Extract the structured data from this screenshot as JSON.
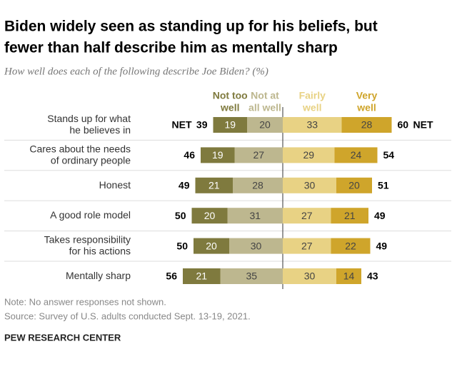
{
  "chart_data": {
    "type": "diverging_bar",
    "title": [
      "Biden widely seen as standing up for his beliefs, but",
      "fewer than half describe him as mentally sharp"
    ],
    "subtitle": "How well does each of the following describe Joe Biden? (%)",
    "categories": [
      [
        "Stands up for what",
        "he believes in"
      ],
      [
        "Cares about the needs",
        "of ordinary people"
      ],
      [
        "Honest"
      ],
      [
        "A good role model"
      ],
      [
        "Takes responsibility",
        "for his actions"
      ],
      [
        "Mentally sharp"
      ]
    ],
    "series": [
      {
        "name": [
          "Not at",
          "all well"
        ],
        "color": "#7f7a3e",
        "text_color": "#ffffff",
        "side": "left",
        "values": [
          20,
          27,
          28,
          31,
          30,
          35
        ]
      },
      {
        "name": [
          "Not too",
          "well"
        ],
        "color": "#bdb78f",
        "text_color": "#444444",
        "side": "left",
        "values": [
          19,
          19,
          21,
          20,
          20,
          21
        ]
      },
      {
        "name": [
          "Fairly",
          "well"
        ],
        "color": "#e8d284",
        "text_color": "#444444",
        "side": "right",
        "values": [
          33,
          29,
          30,
          27,
          27,
          30
        ]
      },
      {
        "name": [
          "Very",
          "well"
        ],
        "color": "#cfa52b",
        "text_color": "#444444",
        "side": "right",
        "values": [
          28,
          24,
          20,
          21,
          22,
          14
        ]
      }
    ],
    "net_label": "NET",
    "net_left": [
      39,
      46,
      49,
      50,
      50,
      56
    ],
    "net_right": [
      60,
      54,
      51,
      49,
      49,
      43
    ],
    "note": "Note: No answer responses not shown.",
    "source": "Source: Survey of U.S. adults conducted Sept. 13-19, 2021.",
    "brand": "PEW RESEARCH CENTER"
  }
}
